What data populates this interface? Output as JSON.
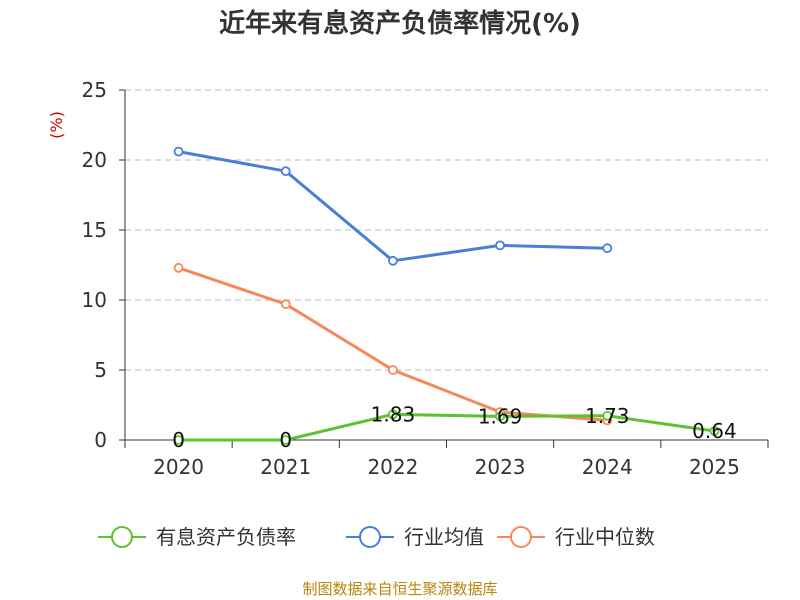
{
  "chart_data": {
    "type": "line",
    "title": "近年来有息资产负债率情况(%)",
    "ylabel": "(%)",
    "categories": [
      "2020",
      "2021",
      "2022",
      "2023",
      "2024",
      "2025"
    ],
    "y_ticks": [
      "0",
      "5",
      "10",
      "15",
      "20",
      "25"
    ],
    "ylim": [
      0,
      25
    ],
    "grid": "horizontal-dashed",
    "legend_position": "bottom",
    "series": [
      {
        "name": "有息资产负债率",
        "color": "#5cc230",
        "values": [
          0,
          0,
          1.83,
          1.69,
          1.73,
          0.64
        ],
        "labels": [
          "0",
          "0",
          "1.83",
          "1.69",
          "1.73",
          "0.64"
        ]
      },
      {
        "name": "行业均值",
        "color": "#4a7fd8",
        "values": [
          20.6,
          19.2,
          12.8,
          13.9,
          13.7,
          null
        ]
      },
      {
        "name": "行业中位数",
        "color": "#f5895a",
        "values": [
          12.3,
          9.7,
          5.0,
          2.0,
          1.4,
          null
        ]
      }
    ]
  },
  "unit_color": "#cc0000",
  "source": {
    "text": "制图数据来自恒生聚源数据库",
    "color": "#b8860b"
  }
}
